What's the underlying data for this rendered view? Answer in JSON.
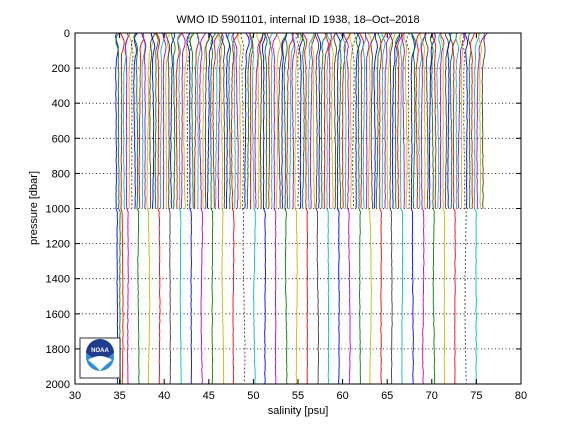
{
  "chart_data": {
    "type": "line",
    "title": "WMO ID 5901101, internal ID 1938, 18–Oct–2018",
    "xlabel": "salinity [psu]",
    "ylabel": "pressure [dbar]",
    "xlim": [
      30,
      80
    ],
    "ylim": [
      0,
      2000
    ],
    "y_reversed": true,
    "x_ticks": [
      30,
      35,
      40,
      45,
      50,
      55,
      60,
      65,
      70,
      75,
      80
    ],
    "y_ticks": [
      0,
      200,
      400,
      600,
      800,
      1000,
      1200,
      1400,
      1600,
      1800,
      2000
    ],
    "grid": "horizontal dotted at y ticks",
    "series_description": "Waterfall of salinity profiles, each successive profile offset by about 0.2 psu; about 40 profiles reach 2000 dbar and about 100 stop at 1000 dbar",
    "profile_offset_step_psu": 0.2,
    "first_profile_surface_salinity": 34.6,
    "deep_profiles_count": 40,
    "shallow_profiles_count": 100,
    "deep_profiles_max_pressure": 2000,
    "shallow_profiles_max_pressure": 1000,
    "series_colors": [
      "#0000ff",
      "#008000",
      "#ff0000",
      "#00bfbf",
      "#bf00bf",
      "#bfbf00",
      "#404040"
    ]
  },
  "logo": {
    "text": "NOAA",
    "colors": {
      "dark_blue": "#1f3c8f",
      "light_blue": "#2f8fd8",
      "white": "#ffffff"
    }
  }
}
